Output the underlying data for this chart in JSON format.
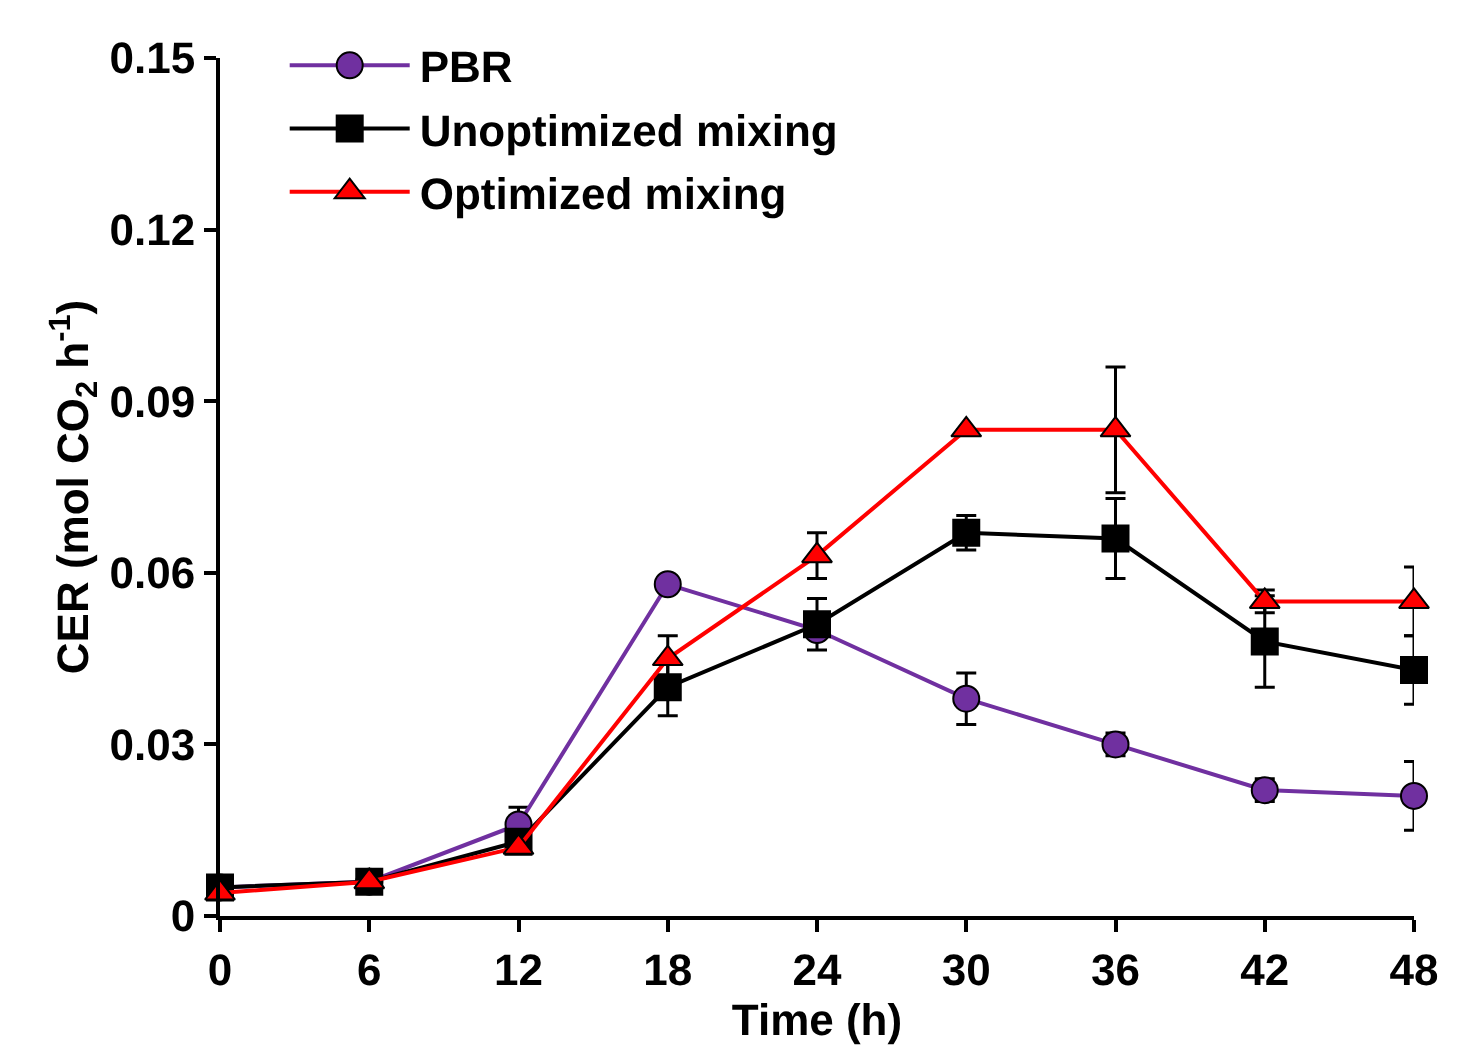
{
  "chart_data": {
    "type": "line",
    "xlabel": "Time (h)",
    "ylabel": "CER (mol CO$_{2}$ h$^{-1}$)",
    "x": [
      0,
      6,
      12,
      18,
      24,
      30,
      36,
      42,
      48
    ],
    "xlim": [
      0,
      48
    ],
    "xticks": [
      0,
      6,
      12,
      18,
      24,
      30,
      36,
      42,
      48
    ],
    "ylim": [
      0,
      0.15
    ],
    "yticks": [
      {
        "value": 0,
        "label": "0"
      },
      {
        "value": 0.03,
        "label": "0.03"
      },
      {
        "value": 0.06,
        "label": "0.06"
      },
      {
        "value": 0.09,
        "label": "0.09"
      },
      {
        "value": 0.12,
        "label": "0.12"
      },
      {
        "value": 0.15,
        "label": "0.15"
      }
    ],
    "legend": "top left",
    "line_style": "solid",
    "series": [
      {
        "name": "PBR",
        "color": "#7030a0",
        "marker": "circle",
        "values": [
          0.005,
          0.006,
          0.016,
          0.058,
          0.05,
          0.038,
          0.03,
          0.022,
          0.021
        ],
        "errors": [
          null,
          null,
          0.003,
          null,
          null,
          0.0045,
          0.002,
          0.002,
          0.006
        ]
      },
      {
        "name": "Unoptimized mixing",
        "color": "#000000",
        "marker": "square",
        "values": [
          0.005,
          0.006,
          0.013,
          0.04,
          0.051,
          0.067,
          0.066,
          0.048,
          0.043
        ],
        "errors": [
          null,
          null,
          null,
          0.005,
          0.0045,
          0.003,
          0.007,
          0.008,
          0.006
        ]
      },
      {
        "name": "Optimized mixing",
        "color": "#ff0000",
        "marker": "triangle",
        "values": [
          0.004,
          0.006,
          0.012,
          0.045,
          0.063,
          0.085,
          0.085,
          0.055,
          0.055
        ],
        "errors": [
          null,
          null,
          null,
          0.004,
          0.004,
          null,
          0.011,
          0.002,
          0.006
        ]
      }
    ]
  }
}
